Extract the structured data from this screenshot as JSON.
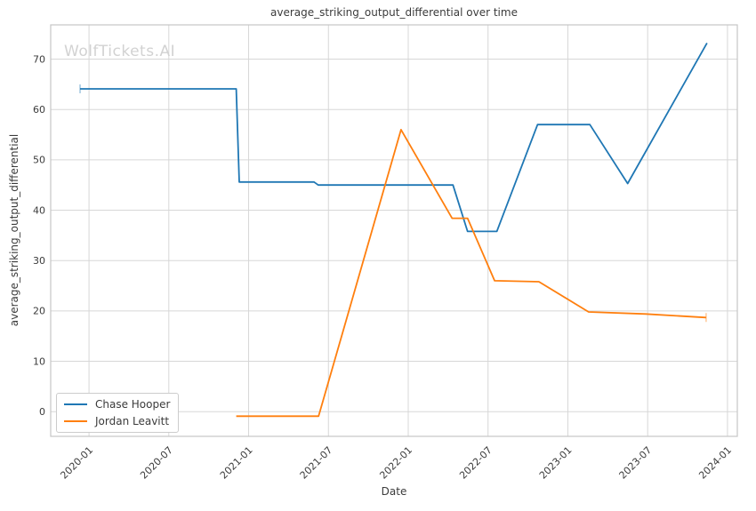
{
  "watermark": "WolfTickets.AI",
  "colors": {
    "grid": "#d7d7d7",
    "spine": "#c6c6c6",
    "text": "#3b3b3b",
    "watermark": "#d2d2d2"
  },
  "chart_data": {
    "type": "line",
    "title": "average_striking_output_differential over time",
    "xlabel": "Date",
    "ylabel": "average_striking_output_differential",
    "x_tick_labels": [
      "2020-01",
      "2020-07",
      "2021-01",
      "2021-07",
      "2022-01",
      "2022-07",
      "2023-01",
      "2023-07",
      "2024-01"
    ],
    "y_ticks": [
      0,
      10,
      20,
      30,
      40,
      50,
      60,
      70
    ],
    "x_domain_months": [
      -2.88,
      48.74
    ],
    "ylim": [
      -4.9,
      76.8
    ],
    "grid": true,
    "legend_position": "lower-left",
    "series": [
      {
        "name": "Chase Hooper",
        "color": "#1f77b4",
        "points": [
          [
            "2019-12-11",
            64.1
          ],
          [
            "2020-12-03",
            64.1
          ],
          [
            "2020-12-10",
            45.6
          ],
          [
            "2021-05-29",
            45.6
          ],
          [
            "2021-06-08",
            45.0
          ],
          [
            "2022-04-12",
            45.0
          ],
          [
            "2022-05-15",
            35.8
          ],
          [
            "2022-07-21",
            35.8
          ],
          [
            "2022-10-23",
            57.0
          ],
          [
            "2023-02-21",
            57.0
          ],
          [
            "2023-05-16",
            45.3
          ],
          [
            "2023-11-15",
            73.2
          ]
        ]
      },
      {
        "name": "Jordan Leavitt",
        "color": "#ff7f0e",
        "points": [
          [
            "2020-12-03",
            -0.9
          ],
          [
            "2021-06-09",
            -0.9
          ],
          [
            "2021-12-15",
            56.0
          ],
          [
            "2022-04-10",
            38.4
          ],
          [
            "2022-05-15",
            38.4
          ],
          [
            "2022-07-16",
            26.0
          ],
          [
            "2022-10-26",
            25.8
          ],
          [
            "2023-02-18",
            19.8
          ],
          [
            "2023-06-27",
            19.4
          ],
          [
            "2023-11-13",
            18.7
          ]
        ]
      }
    ],
    "endpoint_caps": [
      {
        "series": 0,
        "at": "first"
      },
      {
        "series": 1,
        "at": "last"
      }
    ]
  }
}
